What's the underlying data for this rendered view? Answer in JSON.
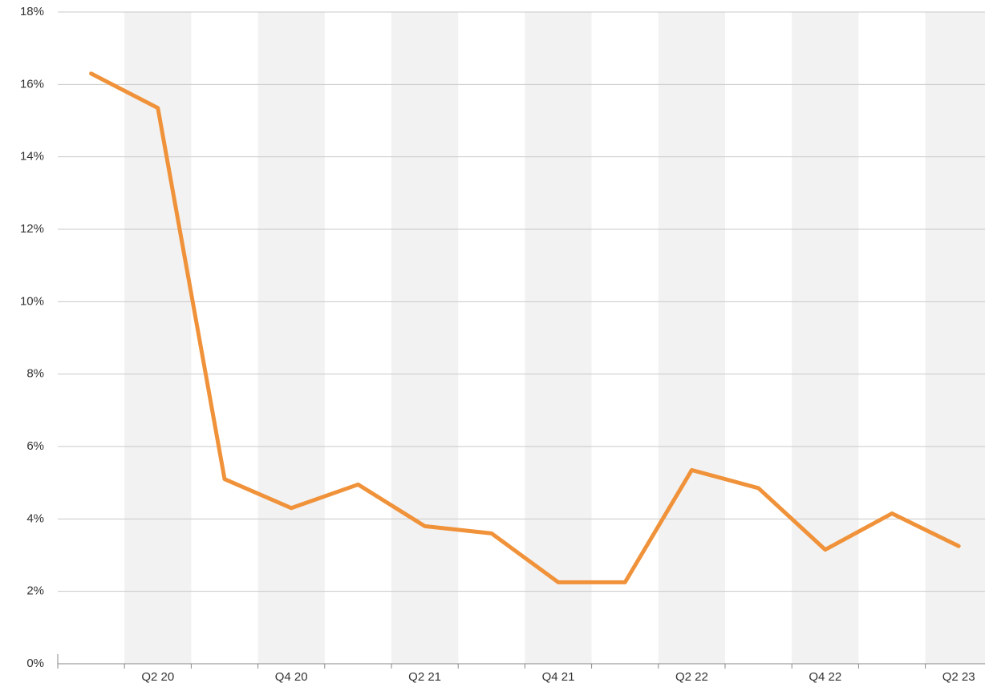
{
  "chart_data": {
    "type": "line",
    "categories": [
      null,
      "Q2 20",
      null,
      "Q4 20",
      null,
      "Q2 21",
      null,
      "Q4 21",
      null,
      "Q2 22",
      null,
      "Q4 22",
      null,
      "Q2 23"
    ],
    "series": [
      {
        "color": "#f0923a",
        "values": [
          16.3,
          15.35,
          5.1,
          4.3,
          4.95,
          3.8,
          3.6,
          2.25,
          2.25,
          5.35,
          4.85,
          3.15,
          4.15,
          3.25
        ]
      }
    ],
    "ylim": [
      0,
      18
    ],
    "yticks": [
      {
        "value": 0,
        "label": "0%"
      },
      {
        "value": 2,
        "label": "2%"
      },
      {
        "value": 4,
        "label": "4%"
      },
      {
        "value": 6,
        "label": "6%"
      },
      {
        "value": 8,
        "label": "8%"
      },
      {
        "value": 10,
        "label": "10%"
      },
      {
        "value": 12,
        "label": "12%"
      },
      {
        "value": 14,
        "label": "14%"
      },
      {
        "value": 16,
        "label": "16%"
      },
      {
        "value": 18,
        "label": "18%"
      }
    ],
    "grid": true
  }
}
